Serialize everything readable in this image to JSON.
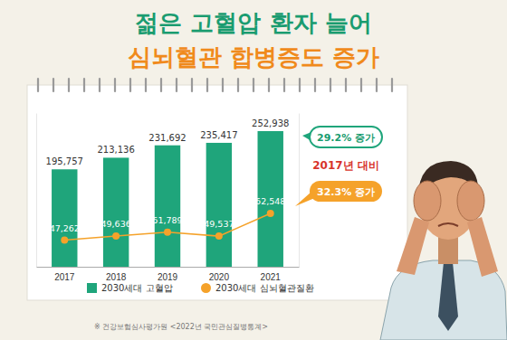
{
  "chart_data": {
    "type": "bar",
    "title": "젊은 고혈압 환자 늘어",
    "subtitle": "심뇌혈관 합병증도 증가",
    "categories": [
      "2017",
      "2018",
      "2019",
      "2020",
      "2021"
    ],
    "series": [
      {
        "name": "2030세대 고혈압",
        "type": "bar",
        "color": "#1fa57b",
        "values": [
          195757,
          213136,
          231692,
          235417,
          252938
        ],
        "value_labels": [
          "195,757",
          "213,136",
          "231,692",
          "235,417",
          "252,938"
        ]
      },
      {
        "name": "2030세대 심뇌혈관질환",
        "type": "line",
        "axis": "y2",
        "color": "#f5a22a",
        "marker": "circle",
        "values": [
          47262,
          49636,
          51789,
          49537,
          62548
        ],
        "value_labels": [
          "47,262",
          "49,636",
          "51,789",
          "49,537",
          "62,548"
        ]
      }
    ],
    "ylim": [
      50000,
      280000
    ],
    "y2lim": [
      32000,
      120000
    ],
    "tick_labels": "x",
    "data_labels": true,
    "legend": "bottom",
    "annotations": [
      "29.2% 증가",
      "2017년 대비",
      "32.3% 증가"
    ],
    "source": "※ 건강보험심사평가원 <2022년 국민관심질병통계>"
  }
}
